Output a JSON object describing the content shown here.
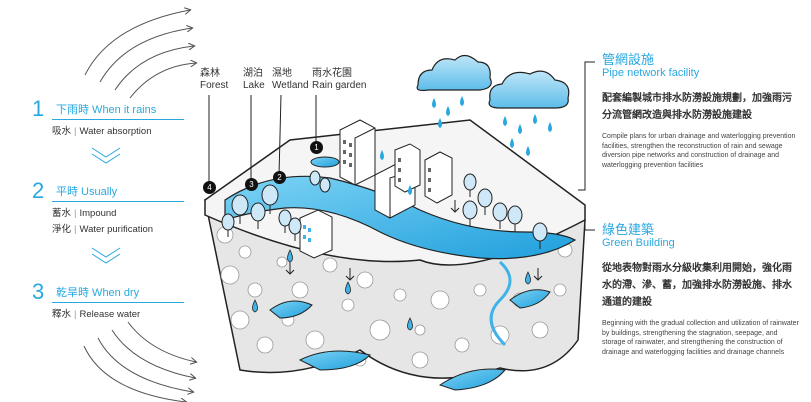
{
  "stages": [
    {
      "number": "1",
      "title": "下雨時 When it rains",
      "items": [
        {
          "zh": "吸水",
          "en": "Water absorption"
        }
      ]
    },
    {
      "number": "2",
      "title": "平時 Usually",
      "items": [
        {
          "zh": "蓄水",
          "en": "Impound"
        },
        {
          "zh": "淨化",
          "en": "Water purification"
        }
      ]
    },
    {
      "number": "3",
      "title": "乾旱時 When dry",
      "items": [
        {
          "zh": "釋水",
          "en": "Release water"
        }
      ]
    }
  ],
  "locations": [
    {
      "marker": "4",
      "zh": "森林",
      "en": "Forest"
    },
    {
      "marker": "3",
      "zh": "湖泊",
      "en": "Lake"
    },
    {
      "marker": "2",
      "zh": "濕地",
      "en": "Wetland"
    },
    {
      "marker": "1",
      "zh": "雨水花園",
      "en": "Rain garden"
    }
  ],
  "sections": [
    {
      "title_zh": "管網設施",
      "title_en": "Pipe network facility",
      "body_zh": "配套編製城市排水防澇設施規劃，加強雨污分流管網改造與排水防澇設施建設",
      "body_en": "Compile plans for urban drainage and waterlogging prevention facilities, strengthen the reconstruction of rain and sewage diversion pipe networks and construction of drainage and waterlogging prevention facilities"
    },
    {
      "title_zh": "綠色建築",
      "title_en": "Green Building",
      "body_zh": "從地表物對雨水分級收集利用開始，強化雨水的滯、滲、蓄，加強排水防澇設施、排水通道的建設",
      "body_en": "Beginning with the gradual collection and utilization of rainwater by buildings, strengthening the stagnation, seepage, and storage of rainwater, and strengthening the construction of drainage and waterlogging facilities and drainage channels"
    }
  ],
  "colors": {
    "accent": "#29a8e0",
    "water": "#3fb3e8",
    "soil": "#e6e6e6",
    "outline": "#222222"
  }
}
